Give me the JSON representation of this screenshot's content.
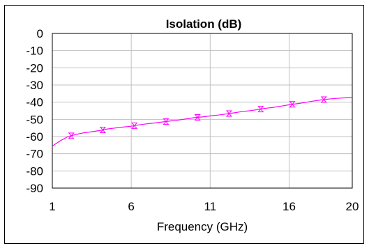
{
  "chart_data": {
    "type": "line",
    "title": "Isolation (dB)",
    "xlabel": "Frequency (GHz)",
    "ylabel": "",
    "xlim": [
      1,
      20
    ],
    "ylim": [
      -90,
      0
    ],
    "x_ticks": [
      1,
      6,
      11,
      16,
      20
    ],
    "y_ticks": [
      0,
      -10,
      -20,
      -30,
      -40,
      -50,
      -60,
      -70,
      -80,
      -90
    ],
    "grid": true,
    "legend": "none",
    "colors": {
      "series": "#ff00ff",
      "grid": "#c0c0c0",
      "axes": "#000000"
    },
    "series": [
      {
        "marker": "hourglass-triangle",
        "x": [
          1.0,
          1.5,
          2.0,
          2.5,
          3.0,
          3.5,
          4.0,
          4.5,
          5.0,
          5.5,
          6.0,
          6.5,
          7.0,
          7.5,
          8.0,
          8.5,
          9.0,
          9.5,
          10.0,
          10.5,
          11.0,
          11.5,
          12.0,
          12.5,
          13.0,
          13.5,
          14.0,
          14.5,
          15.0,
          15.5,
          16.0,
          16.5,
          17.0,
          17.5,
          18.0,
          18.5,
          19.0,
          19.5,
          20.0
        ],
        "values": [
          -65.5,
          -62.5,
          -60.0,
          -58.8,
          -57.8,
          -57.2,
          -56.5,
          -55.6,
          -55.0,
          -54.5,
          -54.0,
          -53.2,
          -52.6,
          -52.1,
          -51.5,
          -50.9,
          -50.4,
          -49.7,
          -49.0,
          -48.6,
          -48.0,
          -47.5,
          -46.9,
          -46.2,
          -45.5,
          -45.0,
          -44.3,
          -43.6,
          -43.0,
          -42.3,
          -41.5,
          -40.9,
          -40.2,
          -39.4,
          -38.7,
          -38.2,
          -37.8,
          -37.5,
          -37.3
        ]
      }
    ],
    "marker_x": [
      2.2,
      4.2,
      6.2,
      8.2,
      10.2,
      12.2,
      14.2,
      16.2,
      18.2
    ]
  }
}
